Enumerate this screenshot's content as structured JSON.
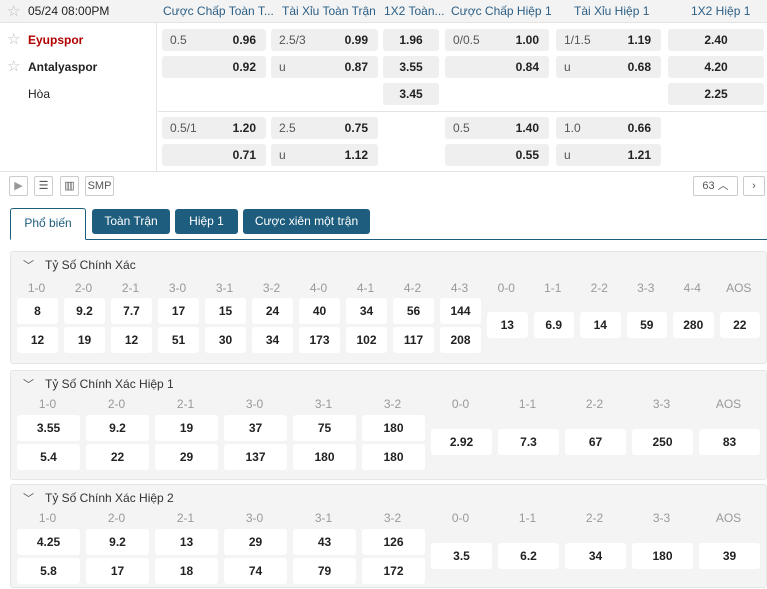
{
  "header": {
    "datetime": "05/24 08:00PM",
    "columns": [
      "Cược Chấp Toàn T...",
      "Tài Xỉu Toàn Trận",
      "1X2 Toàn...",
      "Cược Chấp Hiệp 1",
      "Tài Xỉu Hiệp 1",
      "1X2 Hiệp 1"
    ]
  },
  "teams": {
    "home": "Eyupspor",
    "away": "Antalyaspor",
    "draw": "Hòa",
    "home_color": "#b00000"
  },
  "odds": {
    "hc1": {
      "line": "0.5",
      "home": "0.96",
      "away": "0.92"
    },
    "ou1": {
      "line": "2.5/3",
      "over": "0.99",
      "u": "u",
      "under": "0.87"
    },
    "x12": {
      "home": "1.96",
      "away": "3.55",
      "draw": "3.45"
    },
    "hch1": {
      "line": "0/0.5",
      "home": "1.00",
      "away": "0.84"
    },
    "ouh1": {
      "line": "1/1.5",
      "over": "1.19",
      "u": "u",
      "under": "0.68"
    },
    "x12h1": {
      "home": "2.40",
      "away": "4.20",
      "draw": "2.25"
    },
    "hc2": {
      "line": "0.5/1",
      "home": "1.20",
      "away": "0.71"
    },
    "ou2": {
      "line": "2.5",
      "over": "0.75",
      "u": "u",
      "under": "1.12"
    },
    "hch2": {
      "line": "0.5",
      "home": "1.40",
      "away": "0.55"
    },
    "ouh2": {
      "line": "1.0",
      "over": "0.66",
      "u": "u",
      "under": "1.21"
    }
  },
  "toolbar": {
    "smp": "SMP",
    "count": "63"
  },
  "tabs": [
    "Phổ biến",
    "Toàn Trận",
    "Hiệp 1",
    "Cược xiên một trận"
  ],
  "sections": [
    {
      "title": "Tỷ Số Chính Xác",
      "home": [
        [
          "1-0",
          "8",
          "12"
        ],
        [
          "2-0",
          "9.2",
          "19"
        ],
        [
          "2-1",
          "7.7",
          "12"
        ],
        [
          "3-0",
          "17",
          "51"
        ],
        [
          "3-1",
          "15",
          "30"
        ],
        [
          "3-2",
          "24",
          "34"
        ],
        [
          "4-0",
          "40",
          "173"
        ],
        [
          "4-1",
          "34",
          "102"
        ],
        [
          "4-2",
          "56",
          "117"
        ],
        [
          "4-3",
          "144",
          "208"
        ]
      ],
      "single": [
        [
          "0-0",
          "13"
        ],
        [
          "1-1",
          "6.9"
        ],
        [
          "2-2",
          "14"
        ],
        [
          "3-3",
          "59"
        ],
        [
          "4-4",
          "280"
        ],
        [
          "AOS",
          "22"
        ]
      ]
    },
    {
      "title": "Tỷ Số Chính Xác Hiệp 1",
      "home": [
        [
          "1-0",
          "3.55",
          "5.4"
        ],
        [
          "2-0",
          "9.2",
          "22"
        ],
        [
          "2-1",
          "19",
          "29"
        ],
        [
          "3-0",
          "37",
          "137"
        ],
        [
          "3-1",
          "75",
          "180"
        ],
        [
          "3-2",
          "180",
          "180"
        ]
      ],
      "single": [
        [
          "0-0",
          "2.92"
        ],
        [
          "1-1",
          "7.3"
        ],
        [
          "2-2",
          "67"
        ],
        [
          "3-3",
          "250"
        ],
        [
          "AOS",
          "83"
        ]
      ]
    },
    {
      "title": "Tỷ Số Chính Xác Hiệp 2",
      "home": [
        [
          "1-0",
          "4.25",
          "5.8"
        ],
        [
          "2-0",
          "9.2",
          "17"
        ],
        [
          "2-1",
          "13",
          "18"
        ],
        [
          "3-0",
          "29",
          "74"
        ],
        [
          "3-1",
          "43",
          "79"
        ],
        [
          "3-2",
          "126",
          "172"
        ]
      ],
      "single": [
        [
          "0-0",
          "3.5"
        ],
        [
          "1-1",
          "6.2"
        ],
        [
          "2-2",
          "34"
        ],
        [
          "3-3",
          "180"
        ],
        [
          "AOS",
          "39"
        ]
      ]
    }
  ]
}
